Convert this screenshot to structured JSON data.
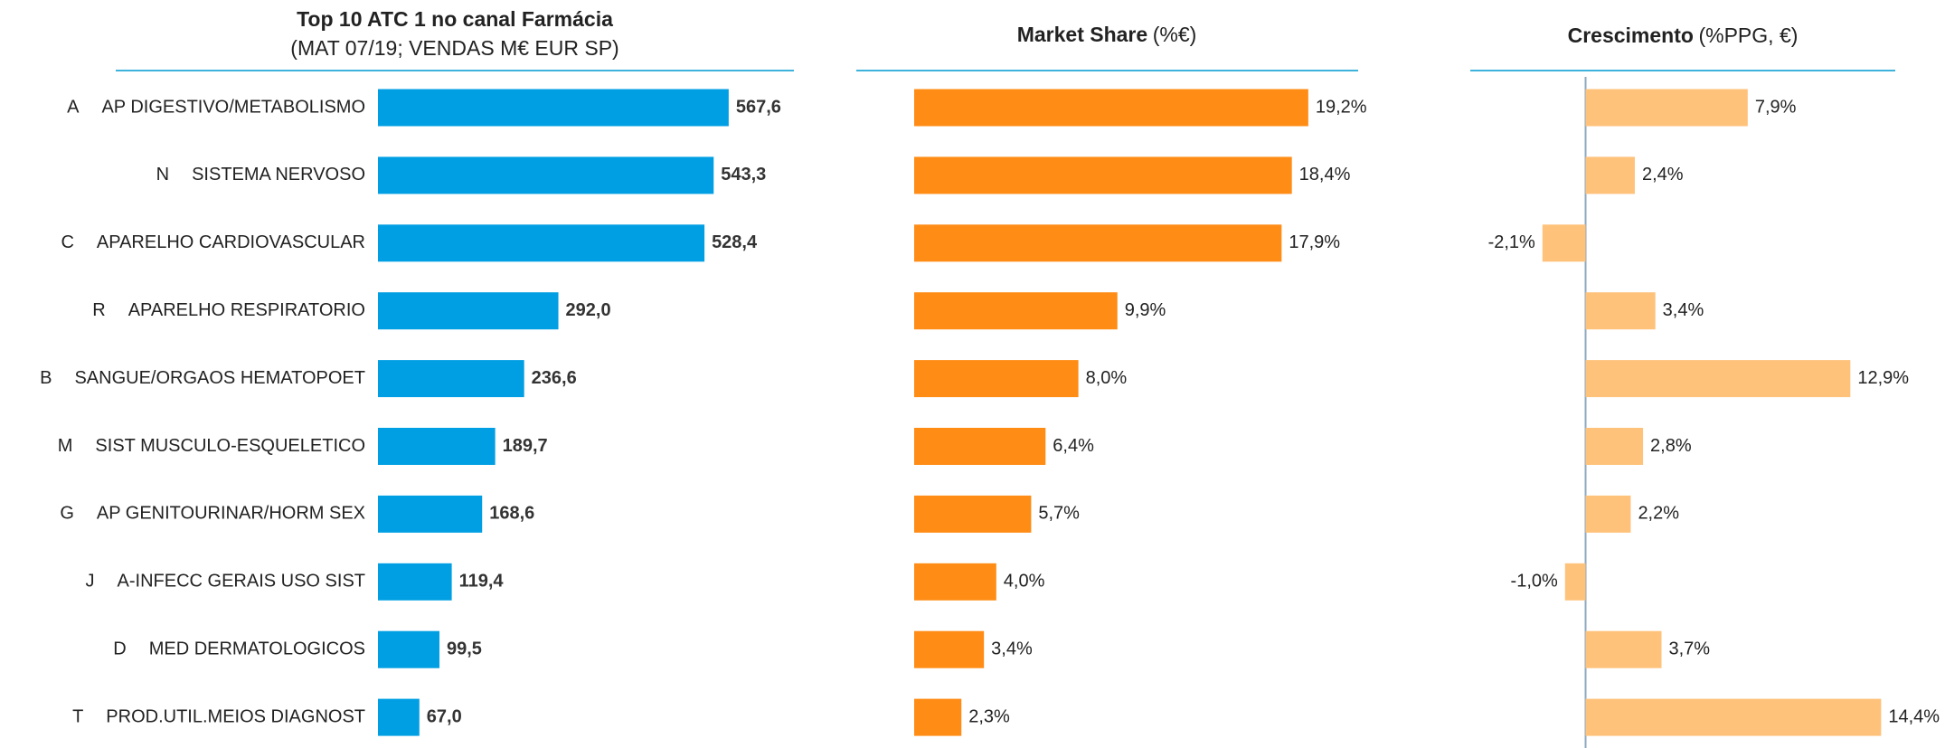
{
  "chart_data": [
    {
      "type": "hbar",
      "title": "Top 10 ATC 1 no canal Farmácia",
      "subtitle": "(MAT 07/19; VENDAS M€ EUR SP)",
      "category_codes": [
        "A",
        "N",
        "C",
        "R",
        "B",
        "M",
        "G",
        "J",
        "D",
        "T"
      ],
      "categories": [
        "AP DIGESTIVO/METABOLISMO",
        "SISTEMA NERVOSO",
        "APARELHO CARDIOVASCULAR",
        "APARELHO RESPIRATORIO",
        "SANGUE/ORGAOS HEMATOPOET",
        "SIST MUSCULO-ESQUELETICO",
        "AP GENITOURINAR/HORM SEX",
        "A-INFECC GERAIS USO SIST",
        "MED DERMATOLOGICOS",
        "PROD.UTIL.MEIOS DIAGNOST"
      ],
      "values": [
        567.6,
        543.3,
        528.4,
        292.0,
        236.6,
        189.7,
        168.6,
        119.4,
        99.5,
        67.0
      ],
      "value_labels": [
        "567,6",
        "543,3",
        "528,4",
        "292,0",
        "236,6",
        "189,7",
        "168,6",
        "119,4",
        "99,5",
        "67,0"
      ],
      "color": "#009fe3",
      "xlim": [
        0,
        600
      ]
    },
    {
      "type": "hbar",
      "title": "Market Share",
      "unit": "(%€)",
      "values": [
        19.2,
        18.4,
        17.9,
        9.9,
        8.0,
        6.4,
        5.7,
        4.0,
        3.4,
        2.3
      ],
      "value_labels": [
        "19,2%",
        "18,4%",
        "17,9%",
        "9,9%",
        "8,0%",
        "6,4%",
        "5,7%",
        "4,0%",
        "3,4%",
        "2,3%"
      ],
      "color": "#ff8c14",
      "xlim": [
        0,
        20
      ]
    },
    {
      "type": "hbar",
      "title": "Crescimento",
      "unit": "(%PPG, €)",
      "values": [
        7.9,
        2.4,
        -2.1,
        3.4,
        12.9,
        2.8,
        2.2,
        -1.0,
        3.7,
        14.4
      ],
      "value_labels": [
        "7,9%",
        "2,4%",
        "-2,1%",
        "3,4%",
        "12,9%",
        "2,8%",
        "2,2%",
        "-1,0%",
        "3,7%",
        "14,4%"
      ],
      "color": "#ffc27a",
      "xlim": [
        -5,
        15
      ]
    }
  ]
}
